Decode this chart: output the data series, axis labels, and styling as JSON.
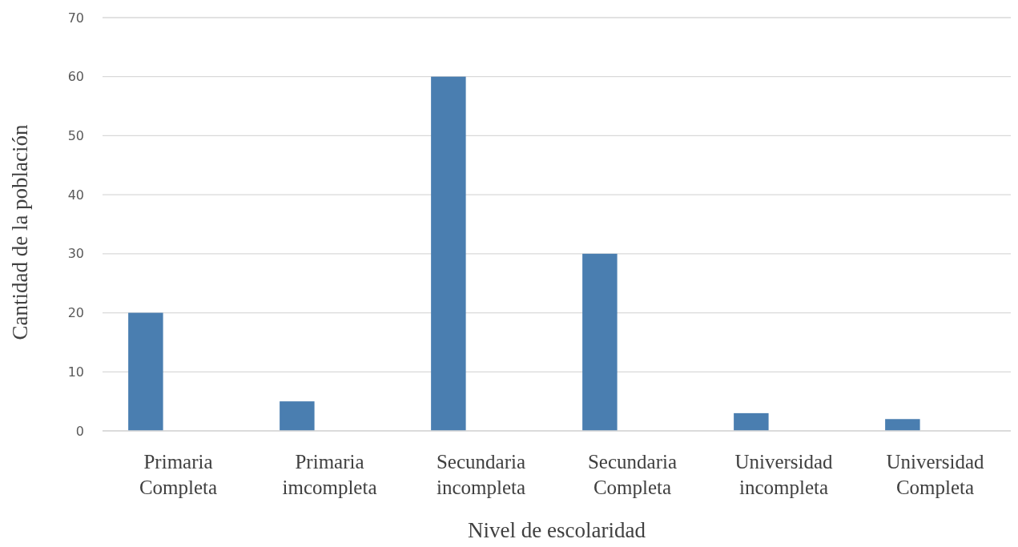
{
  "chart_data": {
    "type": "bar",
    "xlabel": "Nivel de escolaridad",
    "ylabel": "Cantidad de la población",
    "categories": [
      "Primaria Completa",
      "Primaria imcompleta",
      "Secundaria incompleta",
      "Secundaria Completa",
      "Universidad incompleta",
      "Universidad Completa"
    ],
    "values": [
      20,
      5,
      60,
      30,
      3,
      2
    ],
    "color": "#4a7eb0",
    "ylim": [
      0,
      70
    ],
    "yticks": [
      0,
      10,
      20,
      30,
      40,
      50,
      60,
      70
    ],
    "grid": "y"
  }
}
